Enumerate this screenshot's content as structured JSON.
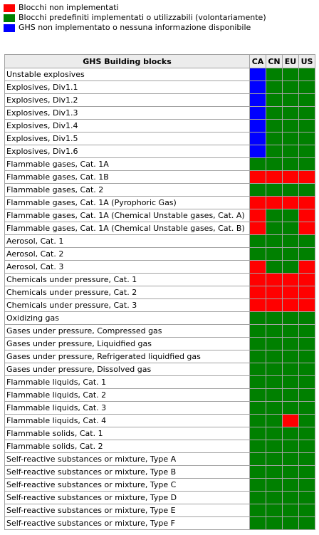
{
  "colors": {
    "red": "#ff0000",
    "green": "#008000",
    "blue": "#0000ff"
  },
  "legend": [
    {
      "color": "red",
      "label": "Blocchi non implementati"
    },
    {
      "color": "green",
      "label": "Blocchi predefiniti implementati o utilizzabili (volontariamente)"
    },
    {
      "color": "blue",
      "label": "GHS non implementato o nessuna informazione disponibile"
    }
  ],
  "table": {
    "header": "GHS Building blocks",
    "regions": [
      "CA",
      "CN",
      "EU",
      "US"
    ],
    "rows": [
      {
        "label": "Unstable explosives",
        "status": [
          "blue",
          "green",
          "green",
          "green"
        ]
      },
      {
        "label": "Explosives, Div1.1",
        "status": [
          "blue",
          "green",
          "green",
          "green"
        ]
      },
      {
        "label": "Explosives, Div1.2",
        "status": [
          "blue",
          "green",
          "green",
          "green"
        ]
      },
      {
        "label": "Explosives, Div1.3",
        "status": [
          "blue",
          "green",
          "green",
          "green"
        ]
      },
      {
        "label": "Explosives, Div1.4",
        "status": [
          "blue",
          "green",
          "green",
          "green"
        ]
      },
      {
        "label": "Explosives, Div1.5",
        "status": [
          "blue",
          "green",
          "green",
          "green"
        ]
      },
      {
        "label": "Explosives, Div1.6",
        "status": [
          "blue",
          "green",
          "green",
          "green"
        ]
      },
      {
        "label": "Flammable gases, Cat. 1A",
        "status": [
          "green",
          "green",
          "green",
          "green"
        ]
      },
      {
        "label": "Flammable gases, Cat. 1B",
        "status": [
          "red",
          "red",
          "red",
          "red"
        ]
      },
      {
        "label": "Flammable gases, Cat. 2",
        "status": [
          "green",
          "green",
          "green",
          "green"
        ]
      },
      {
        "label": "Flammable gases, Cat. 1A (Pyrophoric Gas)",
        "status": [
          "red",
          "red",
          "red",
          "red"
        ]
      },
      {
        "label": "Flammable gases, Cat. 1A (Chemical Unstable gases, Cat. A)",
        "status": [
          "red",
          "green",
          "green",
          "red"
        ]
      },
      {
        "label": "Flammable gases, Cat. 1A (Chemical Unstable gases, Cat. B)",
        "status": [
          "red",
          "green",
          "green",
          "red"
        ]
      },
      {
        "label": "Aerosol, Cat. 1",
        "status": [
          "green",
          "green",
          "green",
          "green"
        ]
      },
      {
        "label": "Aerosol, Cat. 2",
        "status": [
          "green",
          "green",
          "green",
          "green"
        ]
      },
      {
        "label": "Aerosol, Cat. 3",
        "status": [
          "red",
          "green",
          "green",
          "red"
        ]
      },
      {
        "label": "Chemicals under pressure, Cat. 1",
        "status": [
          "red",
          "red",
          "red",
          "red"
        ]
      },
      {
        "label": "Chemicals under pressure, Cat. 2",
        "status": [
          "red",
          "red",
          "red",
          "red"
        ]
      },
      {
        "label": "Chemicals under pressure, Cat. 3",
        "status": [
          "red",
          "red",
          "red",
          "red"
        ]
      },
      {
        "label": "Oxidizing gas",
        "status": [
          "green",
          "green",
          "green",
          "green"
        ]
      },
      {
        "label": "Gases under pressure, Compressed gas",
        "status": [
          "green",
          "green",
          "green",
          "green"
        ]
      },
      {
        "label": "Gases under pressure, Liquidfied gas",
        "status": [
          "green",
          "green",
          "green",
          "green"
        ]
      },
      {
        "label": "Gases under pressure, Refrigerated liquidfied gas",
        "status": [
          "green",
          "green",
          "green",
          "green"
        ]
      },
      {
        "label": "Gases under pressure, Dissolved gas",
        "status": [
          "green",
          "green",
          "green",
          "green"
        ]
      },
      {
        "label": "Flammable liquids, Cat. 1",
        "status": [
          "green",
          "green",
          "green",
          "green"
        ]
      },
      {
        "label": "Flammable liquids, Cat. 2",
        "status": [
          "green",
          "green",
          "green",
          "green"
        ]
      },
      {
        "label": "Flammable liquids, Cat. 3",
        "status": [
          "green",
          "green",
          "green",
          "green"
        ]
      },
      {
        "label": "Flammable liquids, Cat. 4",
        "status": [
          "green",
          "green",
          "red",
          "green"
        ]
      },
      {
        "label": "Flammable solids, Cat. 1",
        "status": [
          "green",
          "green",
          "green",
          "green"
        ]
      },
      {
        "label": "Flammable solids, Cat. 2",
        "status": [
          "green",
          "green",
          "green",
          "green"
        ]
      },
      {
        "label": "Self-reactive substances or mixture, Type A",
        "status": [
          "green",
          "green",
          "green",
          "green"
        ]
      },
      {
        "label": "Self-reactive substances or mixture, Type B",
        "status": [
          "green",
          "green",
          "green",
          "green"
        ]
      },
      {
        "label": "Self-reactive substances or mixture, Type C",
        "status": [
          "green",
          "green",
          "green",
          "green"
        ]
      },
      {
        "label": "Self-reactive substances or mixture, Type D",
        "status": [
          "green",
          "green",
          "green",
          "green"
        ]
      },
      {
        "label": "Self-reactive substances or mixture, Type E",
        "status": [
          "green",
          "green",
          "green",
          "green"
        ]
      },
      {
        "label": "Self-reactive substances or mixture, Type F",
        "status": [
          "green",
          "green",
          "green",
          "green"
        ]
      }
    ]
  }
}
